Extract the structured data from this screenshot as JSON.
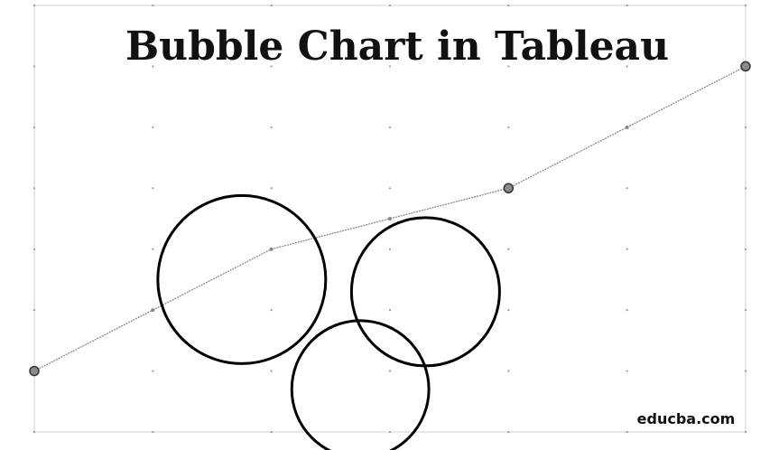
{
  "chart_data": {
    "type": "scatter",
    "title": "Bubble Chart in Tableau",
    "xlabel": "",
    "ylabel": "",
    "xlim": [
      0,
      6
    ],
    "ylim": [
      1,
      4.5
    ],
    "grid": "dotted",
    "trend_line": {
      "points": [
        {
          "x": 0,
          "y": 1.5
        },
        {
          "x": 1,
          "y": 2.0
        },
        {
          "x": 2,
          "y": 2.5
        },
        {
          "x": 3,
          "y": 2.75
        },
        {
          "x": 4,
          "y": 3.0
        },
        {
          "x": 5,
          "y": 3.5
        },
        {
          "x": 6,
          "y": 4.0
        }
      ],
      "highlighted": [
        0,
        4,
        6
      ]
    },
    "bubbles": [
      {
        "x": 1.75,
        "y": 2.25,
        "size": 0.9
      },
      {
        "x": 3.3,
        "y": 2.15,
        "size": 0.7
      },
      {
        "x": 2.75,
        "y": 1.35,
        "size": 0.6
      }
    ]
  },
  "watermark": "educba.com"
}
